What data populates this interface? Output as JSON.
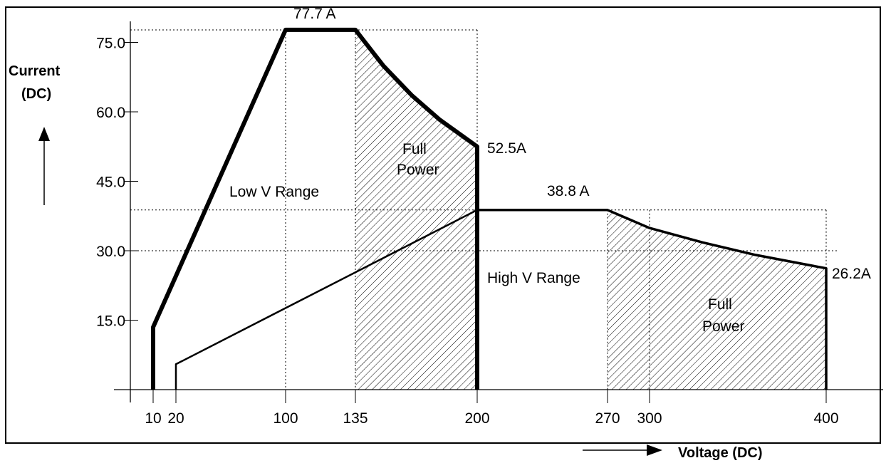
{
  "chart_data": {
    "type": "line",
    "xlabel": "Voltage (DC)",
    "ylabel_line1": "Current",
    "ylabel_line2": "(DC)",
    "x_ticks": [
      10,
      20,
      100,
      135,
      200,
      270,
      300,
      400
    ],
    "y_ticks": [
      "15.0",
      "30.0",
      "45.0",
      "60.0",
      "75.0"
    ],
    "y_tick_values": [
      15,
      30,
      45,
      60,
      75
    ],
    "reference_lines": {
      "current": [
        77.7,
        38.8,
        30
      ],
      "voltage": [
        100,
        135,
        200,
        270,
        300,
        400
      ]
    },
    "series": [
      {
        "name": "Low V Range",
        "x": [
          10,
          10,
          100,
          135,
          150,
          165,
          180,
          200,
          200
        ],
        "y": [
          0,
          13.5,
          77.7,
          77.7,
          69.9,
          63.6,
          58.3,
          52.5,
          0
        ]
      },
      {
        "name": "High V Range",
        "x": [
          20,
          20,
          200,
          270,
          300,
          330,
          360,
          400,
          400
        ],
        "y": [
          0,
          5.5,
          38.8,
          38.8,
          34.9,
          31.8,
          29.1,
          26.2,
          0
        ]
      }
    ],
    "full_power_regions": [
      {
        "x_start": 135,
        "x_end": 200,
        "i_start": 77.7,
        "i_end": 52.5
      },
      {
        "x_start": 270,
        "x_end": 400,
        "i_start": 38.8,
        "i_end": 26.2
      }
    ],
    "annotations": {
      "peak_low": "77.7 A",
      "end_low": "52.5A",
      "peak_high": "38.8 A",
      "end_high": "26.2A",
      "low_range": "Low V Range",
      "high_range": "High V Range",
      "full_power_1_line1": "Full",
      "full_power_1_line2": "Power",
      "full_power_2_line1": "Full",
      "full_power_2_line2": "Power"
    }
  }
}
